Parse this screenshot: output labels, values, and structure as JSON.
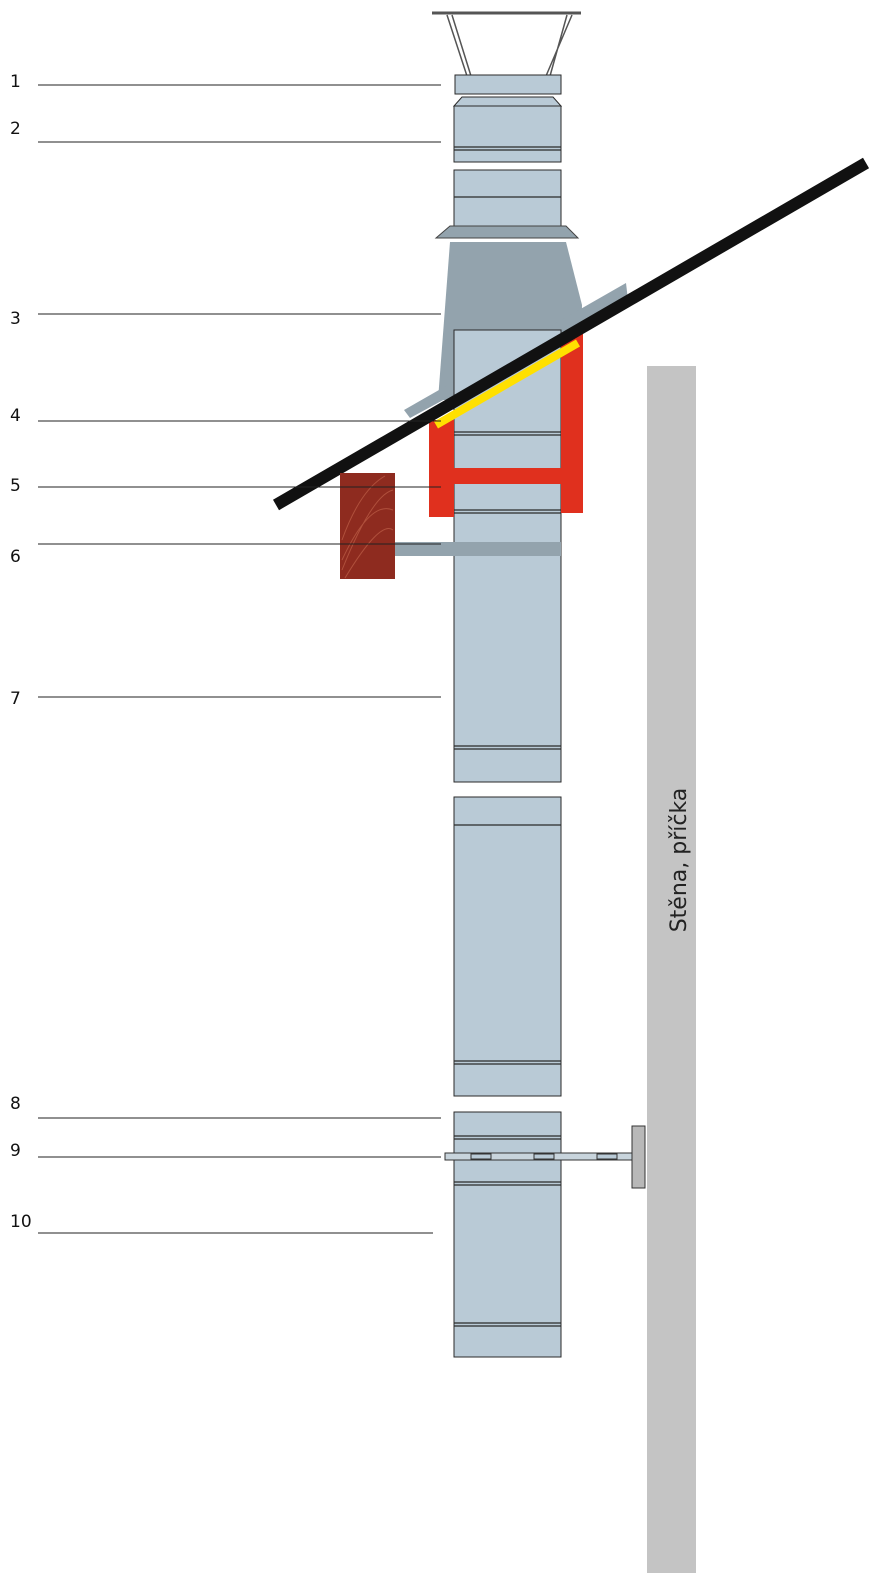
{
  "labels": [
    {
      "number": "1"
    },
    {
      "number": "2"
    },
    {
      "number": "3"
    },
    {
      "number": "4"
    },
    {
      "number": "5"
    },
    {
      "number": "6"
    },
    {
      "number": "7"
    },
    {
      "number": "8"
    },
    {
      "number": "9"
    },
    {
      "number": "10"
    }
  ],
  "wall": {
    "label": "Stěna, příčka"
  }
}
